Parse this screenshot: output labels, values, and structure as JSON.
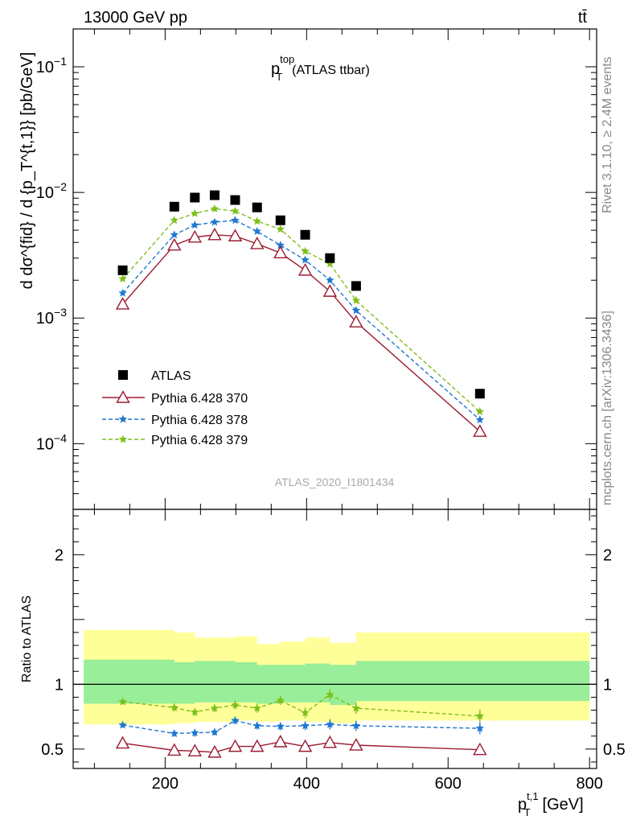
{
  "header": {
    "left": "13000 GeV pp",
    "right": "tt̄"
  },
  "side_labels": {
    "rivet": "Rivet 3.1.10, ≥ 2.4M events",
    "mcplots": "mcplots.cern.ch [arXiv:1306.3436]"
  },
  "chart_data": [
    {
      "type": "scatter",
      "panel": "main",
      "title": "p_T^top (ATLAS ttbar)",
      "title_main": "p",
      "title_sup": "top",
      "title_sub": "T",
      "title_tail": "(ATLAS ttbar)",
      "watermark": "ATLAS_2020_I1801434",
      "ylabel": "d dσ^{fid} / d {p_T^{t,1}} [pb/GeV]",
      "yscale": "log",
      "xlim": [
        70,
        810
      ],
      "ylim": [
        3e-05,
        0.2
      ],
      "yticks": [
        {
          "value": 0.1,
          "base": "10",
          "exp": "−1"
        },
        {
          "value": 0.01,
          "base": "10",
          "exp": "−2"
        },
        {
          "value": 0.001,
          "base": "10",
          "exp": "−3"
        },
        {
          "value": 0.0001,
          "base": "10",
          "exp": "−4"
        }
      ],
      "x": [
        140,
        213,
        242,
        270,
        299,
        330,
        363,
        398,
        433,
        470,
        645
      ],
      "legend": {
        "position": "lower-left"
      },
      "series": [
        {
          "name": "ATLAS",
          "marker": "square",
          "color": "#000000",
          "line": "none",
          "values": [
            0.0024,
            0.0077,
            0.0091,
            0.0095,
            0.0087,
            0.0076,
            0.006,
            0.0046,
            0.003,
            0.0018,
            0.00025
          ]
        },
        {
          "name": "Pythia 6.428 370",
          "marker": "open-triangle",
          "color": "#9b1b30",
          "line": "solid",
          "values": [
            0.00129,
            0.0038,
            0.0044,
            0.0046,
            0.0045,
            0.0039,
            0.0033,
            0.0024,
            0.00163,
            0.00093,
            0.000125
          ]
        },
        {
          "name": "Pythia 6.428 378",
          "marker": "star",
          "color": "#1f77d0",
          "line": "dashed",
          "values": [
            0.00158,
            0.0046,
            0.0055,
            0.0058,
            0.006,
            0.0049,
            0.0038,
            0.0029,
            0.002,
            0.00115,
            0.000155
          ]
        },
        {
          "name": "Pythia 6.428 379",
          "marker": "star",
          "color": "#7dbf1c",
          "line": "dashed",
          "values": [
            0.00205,
            0.006,
            0.0068,
            0.0074,
            0.0071,
            0.0059,
            0.0051,
            0.0034,
            0.0027,
            0.00138,
            0.00018
          ]
        }
      ]
    },
    {
      "type": "line",
      "panel": "ratio",
      "ylabel": "Ratio to ATLAS",
      "xlabel": "p_T^{t,1} [GeV]",
      "xlabel_main": "p",
      "xlabel_sup": "t,1",
      "xlabel_sub": "T",
      "xlabel_tail": "[GeV]",
      "xlim": [
        70,
        810
      ],
      "ylim": [
        0.35,
        2.35
      ],
      "xticks": [
        200,
        400,
        600,
        800
      ],
      "yticks": [
        0.5,
        1,
        2
      ],
      "ytick_labels": [
        "0.5",
        "1",
        "2"
      ],
      "reference_line": 1.0,
      "bands": {
        "edges": [
          85,
          213,
          242,
          299,
          330,
          363,
          398,
          433,
          470,
          800
        ],
        "inner": {
          "color": "#99ee99",
          "lo": [
            0.85,
            0.85,
            0.86,
            0.86,
            0.85,
            0.86,
            0.86,
            0.84,
            0.87
          ],
          "hi": [
            1.19,
            1.17,
            1.18,
            1.17,
            1.15,
            1.15,
            1.16,
            1.15,
            1.18
          ]
        },
        "outer": {
          "color": "#ffff99",
          "lo": [
            0.69,
            0.7,
            0.71,
            0.72,
            0.71,
            0.72,
            0.71,
            0.7,
            0.72
          ],
          "hi": [
            1.42,
            1.4,
            1.36,
            1.37,
            1.31,
            1.33,
            1.36,
            1.32,
            1.4
          ]
        }
      },
      "series": [
        {
          "name": "Pythia 6.428 370",
          "color": "#9b1b30",
          "values": [
            0.545,
            0.49,
            0.485,
            0.475,
            0.52,
            0.52,
            0.555,
            0.52,
            0.55,
            0.53,
            0.495
          ],
          "errors": [
            0.02,
            0.02,
            0.025,
            0.02,
            0.025,
            0.025,
            0.025,
            0.03,
            0.035,
            0.035,
            0.04
          ]
        },
        {
          "name": "Pythia 6.428 378",
          "color": "#1f77d0",
          "values": [
            0.685,
            0.62,
            0.625,
            0.63,
            0.72,
            0.68,
            0.675,
            0.68,
            0.69,
            0.68,
            0.66
          ],
          "errors": [
            0.02,
            0.025,
            0.03,
            0.025,
            0.03,
            0.03,
            0.03,
            0.035,
            0.04,
            0.04,
            0.045
          ]
        },
        {
          "name": "Pythia 6.428 379",
          "color": "#7dbf1c",
          "values": [
            0.865,
            0.82,
            0.785,
            0.815,
            0.84,
            0.815,
            0.875,
            0.78,
            0.92,
            0.815,
            0.755
          ],
          "errors": [
            0.02,
            0.03,
            0.03,
            0.03,
            0.035,
            0.035,
            0.035,
            0.04,
            0.045,
            0.045,
            0.05
          ]
        }
      ]
    }
  ]
}
